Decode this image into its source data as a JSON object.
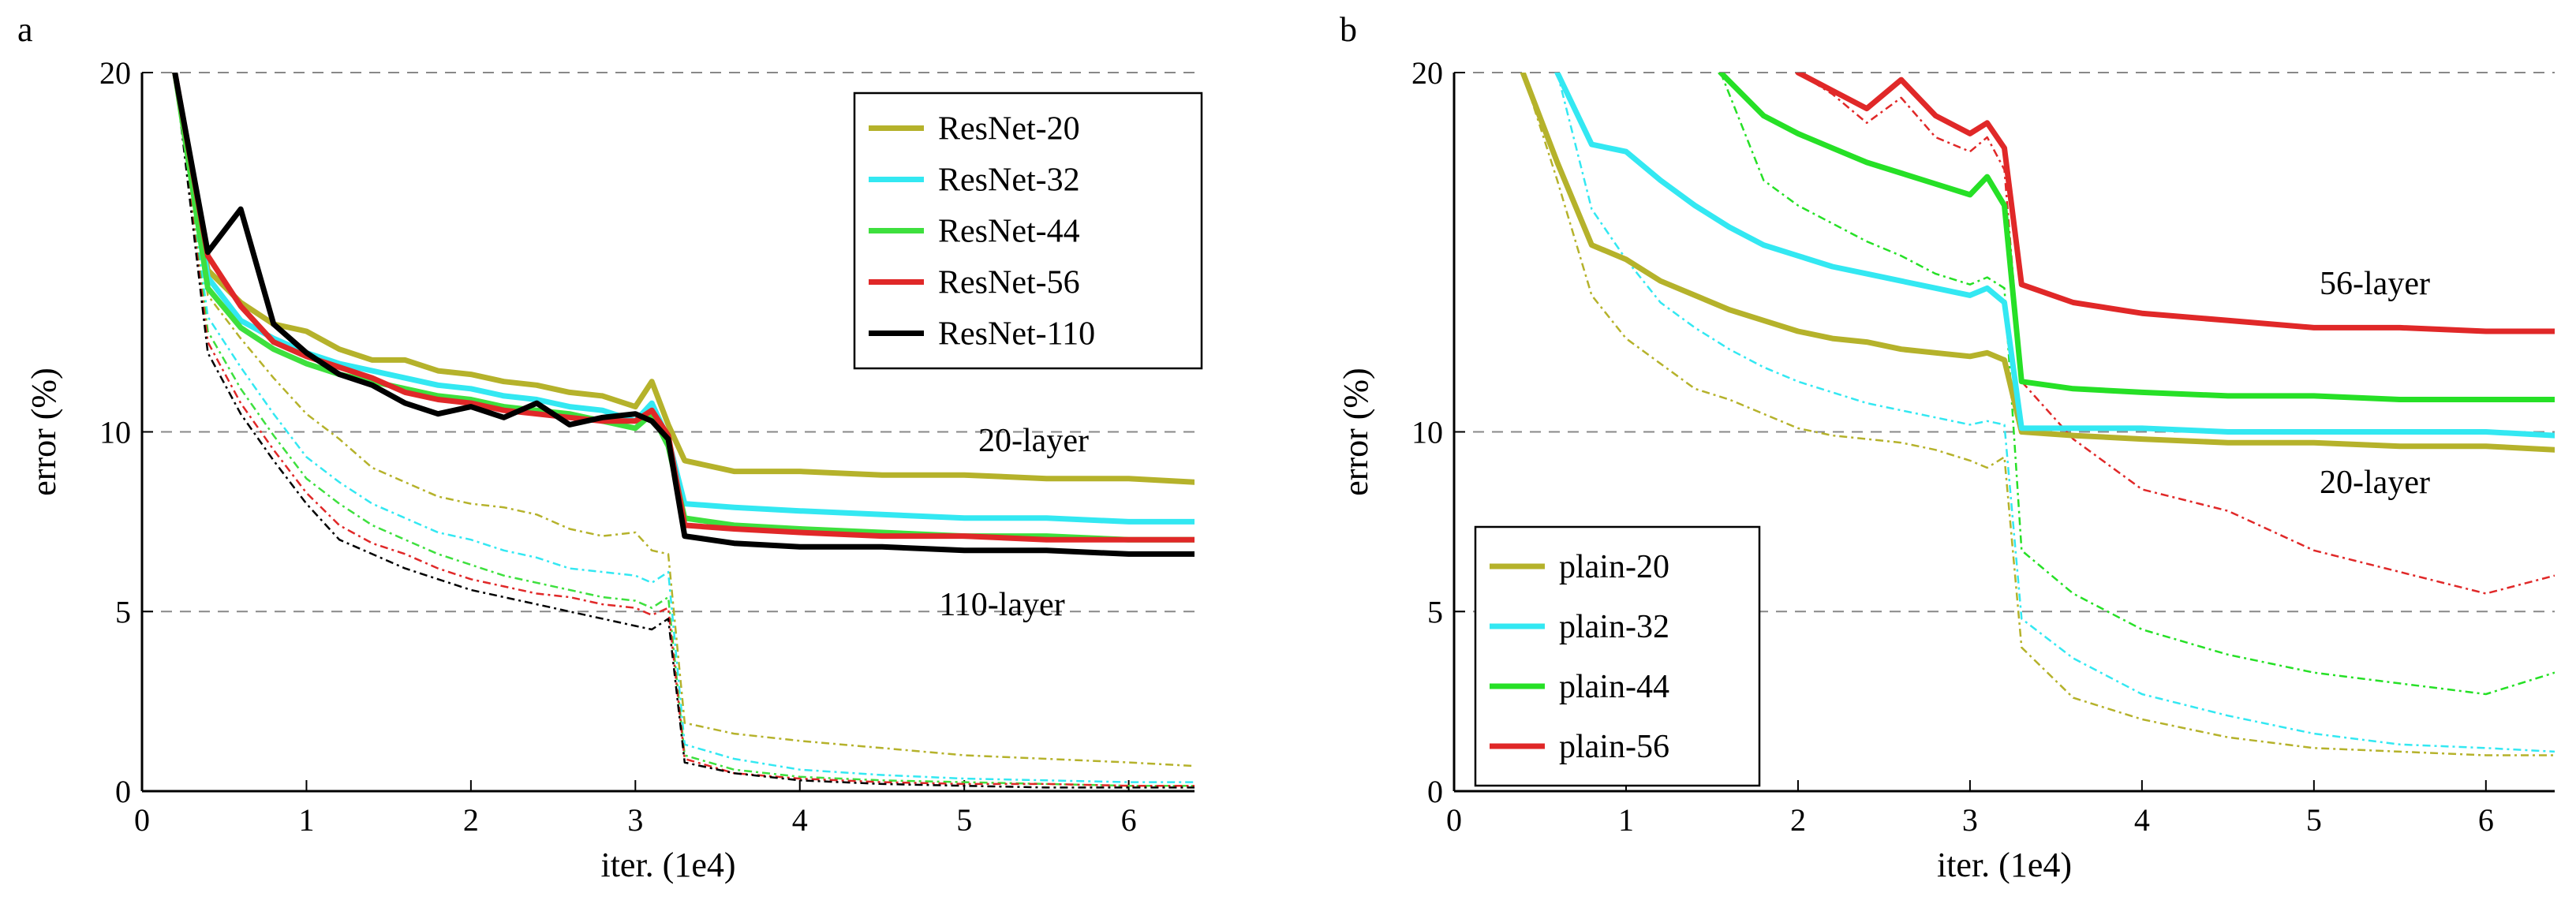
{
  "chart_data": [
    {
      "panel": "a",
      "type": "line",
      "xlabel": "iter. (1e4)",
      "ylabel": "error (%)",
      "xlim": [
        0,
        6.4
      ],
      "ylim": [
        0,
        20
      ],
      "xticks": [
        "0",
        "1",
        "2",
        "3",
        "4",
        "5",
        "6"
      ],
      "yticks": [
        "0",
        "5",
        "10",
        "20"
      ],
      "grid": "dashed horizontal lines at 5, 10, 20",
      "legend_position": "top-right",
      "annotations": [
        {
          "text": "20-layer",
          "x": 5.5,
          "y": 9.6
        },
        {
          "text": "110-layer",
          "x": 5.5,
          "y": 5.0
        }
      ],
      "series": [
        {
          "name": "ResNet-20",
          "color": "#b5b22b",
          "x": [
            0.2,
            0.4,
            0.6,
            0.8,
            1.0,
            1.2,
            1.4,
            1.6,
            1.8,
            2.0,
            2.2,
            2.4,
            2.6,
            2.8,
            3.0,
            3.1,
            3.2,
            3.3,
            3.6,
            4.0,
            4.5,
            5.0,
            5.5,
            6.0,
            6.4
          ],
          "train": [
            20,
            14.5,
            13.6,
            13.0,
            12.8,
            12.3,
            12.0,
            12.0,
            11.7,
            11.6,
            11.4,
            11.3,
            11.1,
            11.0,
            10.7,
            11.4,
            10.2,
            9.2,
            8.9,
            8.9,
            8.8,
            8.8,
            8.7,
            8.7,
            8.6
          ],
          "test": [
            20,
            13.8,
            12.6,
            11.5,
            10.5,
            9.8,
            9.0,
            8.6,
            8.2,
            8.0,
            7.9,
            7.7,
            7.3,
            7.1,
            7.2,
            6.7,
            6.6,
            1.9,
            1.6,
            1.4,
            1.2,
            1.0,
            0.9,
            0.8,
            0.7
          ]
        },
        {
          "name": "ResNet-32",
          "color": "#33e8f2",
          "x": [
            0.2,
            0.4,
            0.6,
            0.8,
            1.0,
            1.2,
            1.4,
            1.6,
            1.8,
            2.0,
            2.2,
            2.4,
            2.6,
            2.8,
            3.0,
            3.1,
            3.2,
            3.3,
            3.6,
            4.0,
            4.5,
            5.0,
            5.5,
            6.0,
            6.4
          ],
          "train": [
            20,
            14.3,
            13.1,
            12.6,
            12.2,
            11.9,
            11.7,
            11.5,
            11.3,
            11.2,
            11.0,
            10.9,
            10.7,
            10.6,
            10.3,
            10.8,
            9.8,
            8.0,
            7.9,
            7.8,
            7.7,
            7.6,
            7.6,
            7.5,
            7.5
          ],
          "test": [
            20,
            13.2,
            11.8,
            10.5,
            9.3,
            8.6,
            8.0,
            7.6,
            7.2,
            7.0,
            6.7,
            6.5,
            6.2,
            6.1,
            6.0,
            5.8,
            6.1,
            1.3,
            0.9,
            0.6,
            0.45,
            0.35,
            0.3,
            0.25,
            0.25
          ]
        },
        {
          "name": "ResNet-44",
          "color": "#3ee03e",
          "x": [
            0.2,
            0.4,
            0.6,
            0.8,
            1.0,
            1.2,
            1.4,
            1.6,
            1.8,
            2.0,
            2.2,
            2.4,
            2.6,
            2.8,
            3.0,
            3.1,
            3.2,
            3.3,
            3.6,
            4.0,
            4.5,
            5.0,
            5.5,
            6.0,
            6.4
          ],
          "train": [
            20,
            14.0,
            12.9,
            12.3,
            11.9,
            11.6,
            11.4,
            11.2,
            11.0,
            10.9,
            10.7,
            10.6,
            10.5,
            10.3,
            10.1,
            10.5,
            9.6,
            7.6,
            7.4,
            7.3,
            7.2,
            7.1,
            7.1,
            7.0,
            7.0
          ],
          "test": [
            20,
            12.8,
            11.2,
            9.9,
            8.7,
            8.0,
            7.4,
            7.0,
            6.6,
            6.3,
            6.0,
            5.8,
            5.6,
            5.4,
            5.3,
            5.1,
            5.4,
            1.0,
            0.6,
            0.4,
            0.3,
            0.25,
            0.2,
            0.15,
            0.15
          ]
        },
        {
          "name": "ResNet-56",
          "color": "#e02828",
          "x": [
            0.2,
            0.4,
            0.6,
            0.8,
            1.0,
            1.2,
            1.4,
            1.6,
            1.8,
            2.0,
            2.2,
            2.4,
            2.6,
            2.8,
            3.0,
            3.1,
            3.2,
            3.3,
            3.6,
            4.0,
            4.5,
            5.0,
            5.5,
            6.0,
            6.4
          ],
          "train": [
            20,
            14.9,
            13.5,
            12.5,
            12.1,
            11.8,
            11.5,
            11.1,
            10.9,
            10.8,
            10.6,
            10.5,
            10.4,
            10.3,
            10.3,
            10.6,
            9.9,
            7.4,
            7.3,
            7.2,
            7.1,
            7.1,
            7.0,
            7.0,
            7.0
          ],
          "test": [
            20,
            12.5,
            10.8,
            9.5,
            8.3,
            7.4,
            6.9,
            6.6,
            6.2,
            5.9,
            5.7,
            5.5,
            5.4,
            5.2,
            5.1,
            4.9,
            5.1,
            0.9,
            0.5,
            0.35,
            0.25,
            0.2,
            0.2,
            0.15,
            0.15
          ]
        },
        {
          "name": "ResNet-110",
          "color": "#000000",
          "x": [
            0.2,
            0.4,
            0.6,
            0.8,
            1.0,
            1.2,
            1.4,
            1.6,
            1.8,
            2.0,
            2.2,
            2.4,
            2.6,
            2.8,
            3.0,
            3.1,
            3.2,
            3.3,
            3.6,
            4.0,
            4.5,
            5.0,
            5.5,
            6.0,
            6.4
          ],
          "train": [
            20,
            15.0,
            16.2,
            13.0,
            12.2,
            11.6,
            11.3,
            10.8,
            10.5,
            10.7,
            10.4,
            10.8,
            10.2,
            10.4,
            10.5,
            10.3,
            9.8,
            7.1,
            6.9,
            6.8,
            6.8,
            6.7,
            6.7,
            6.6,
            6.6
          ],
          "test": [
            20,
            12.2,
            10.5,
            9.2,
            8.0,
            7.0,
            6.6,
            6.2,
            5.9,
            5.6,
            5.4,
            5.2,
            5.0,
            4.8,
            4.6,
            4.5,
            4.8,
            0.8,
            0.5,
            0.3,
            0.2,
            0.15,
            0.1,
            0.1,
            0.1
          ]
        }
      ]
    },
    {
      "panel": "b",
      "type": "line",
      "xlabel": "iter. (1e4)",
      "ylabel": "error (%)",
      "xlim": [
        0,
        6.4
      ],
      "ylim": [
        0,
        20
      ],
      "xticks": [
        "0",
        "1",
        "2",
        "3",
        "4",
        "5",
        "6"
      ],
      "yticks": [
        "0",
        "5",
        "10",
        "20"
      ],
      "grid": "dashed horizontal lines at 5, 10, 20",
      "legend_position": "bottom-left",
      "annotations": [
        {
          "text": "56-layer",
          "x": 5.85,
          "y": 14.0
        },
        {
          "text": "20-layer",
          "x": 5.85,
          "y": 8.6
        }
      ],
      "series": [
        {
          "name": "plain-20",
          "color": "#b5b22b",
          "x": [
            0.4,
            0.6,
            0.8,
            1.0,
            1.2,
            1.4,
            1.6,
            1.8,
            2.0,
            2.2,
            2.4,
            2.6,
            2.8,
            3.0,
            3.1,
            3.2,
            3.3,
            3.6,
            4.0,
            4.5,
            5.0,
            5.5,
            6.0,
            6.4
          ],
          "train": [
            20,
            17.5,
            15.2,
            14.8,
            14.2,
            13.8,
            13.4,
            13.1,
            12.8,
            12.6,
            12.5,
            12.3,
            12.2,
            12.1,
            12.2,
            12.0,
            10.0,
            9.9,
            9.8,
            9.7,
            9.7,
            9.6,
            9.6,
            9.5
          ],
          "test": [
            20,
            17.0,
            13.8,
            12.6,
            11.9,
            11.2,
            10.9,
            10.5,
            10.1,
            9.9,
            9.8,
            9.7,
            9.5,
            9.2,
            9.0,
            9.3,
            4.0,
            2.6,
            2.0,
            1.5,
            1.2,
            1.1,
            1.0,
            1.0
          ]
        },
        {
          "name": "plain-32",
          "color": "#33e8f2",
          "x": [
            0.6,
            0.8,
            1.0,
            1.2,
            1.4,
            1.6,
            1.8,
            2.0,
            2.2,
            2.4,
            2.6,
            2.8,
            3.0,
            3.1,
            3.2,
            3.3,
            3.6,
            4.0,
            4.5,
            5.0,
            5.5,
            6.0,
            6.4
          ],
          "train": [
            20,
            18.0,
            17.8,
            17.0,
            16.3,
            15.7,
            15.2,
            14.9,
            14.6,
            14.4,
            14.2,
            14.0,
            13.8,
            14.0,
            13.6,
            10.1,
            10.1,
            10.1,
            10.0,
            10.0,
            10.0,
            10.0,
            9.9
          ],
          "test": [
            20,
            16.2,
            14.8,
            13.6,
            12.9,
            12.3,
            11.8,
            11.4,
            11.1,
            10.8,
            10.6,
            10.4,
            10.2,
            10.3,
            10.2,
            4.8,
            3.7,
            2.7,
            2.1,
            1.6,
            1.3,
            1.2,
            1.1
          ]
        },
        {
          "name": "plain-44",
          "color": "#26e026",
          "x": [
            1.55,
            1.8,
            2.0,
            2.2,
            2.4,
            2.6,
            2.8,
            3.0,
            3.1,
            3.2,
            3.3,
            3.6,
            4.0,
            4.5,
            5.0,
            5.5,
            6.0,
            6.4
          ],
          "train": [
            20,
            18.8,
            18.3,
            17.9,
            17.5,
            17.2,
            16.9,
            16.6,
            17.1,
            16.3,
            11.4,
            11.2,
            11.1,
            11.0,
            11.0,
            10.9,
            10.9,
            10.9
          ],
          "test": [
            20,
            17.0,
            16.3,
            15.8,
            15.3,
            14.9,
            14.4,
            14.1,
            14.3,
            14.0,
            6.7,
            5.5,
            4.5,
            3.8,
            3.3,
            3.0,
            2.7,
            3.3
          ]
        },
        {
          "name": "plain-56",
          "color": "#e02828",
          "x": [
            2.0,
            2.2,
            2.4,
            2.6,
            2.8,
            3.0,
            3.1,
            3.2,
            3.3,
            3.6,
            4.0,
            4.5,
            5.0,
            5.5,
            6.0,
            6.4
          ],
          "train": [
            20,
            19.5,
            19.0,
            19.8,
            18.8,
            18.3,
            18.6,
            17.9,
            14.1,
            13.6,
            13.3,
            13.1,
            12.9,
            12.9,
            12.8,
            12.8
          ],
          "test": [
            20,
            19.4,
            18.6,
            19.3,
            18.2,
            17.8,
            18.2,
            17.3,
            11.4,
            9.8,
            8.4,
            7.8,
            6.7,
            6.1,
            5.5,
            6.0
          ]
        }
      ]
    }
  ]
}
